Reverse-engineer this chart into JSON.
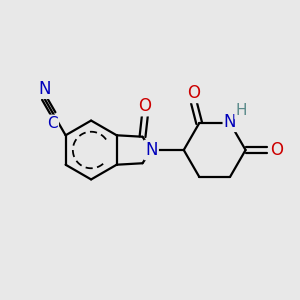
{
  "background_color": "#e8e8e8",
  "bond_color": "#000000",
  "bond_width": 1.6,
  "atom_colors": {
    "N": "#0000bb",
    "O": "#cc0000",
    "H": "#5a8a8a"
  },
  "font_size": 12,
  "font_size_h": 11
}
